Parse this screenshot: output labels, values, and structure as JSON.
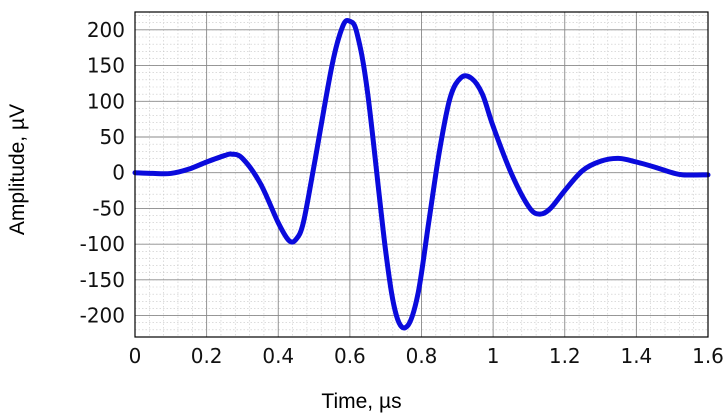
{
  "chart_data": {
    "type": "line",
    "title": "",
    "xlabel": "Time, µs",
    "ylabel": "Amplitude, µV",
    "xlim": [
      0,
      1.6
    ],
    "ylim": [
      -230,
      225
    ],
    "xticks": [
      0,
      0.2,
      0.4,
      0.6,
      0.8,
      1,
      1.2,
      1.4,
      1.6
    ],
    "xtick_labels": [
      "0",
      "0.2",
      "0.4",
      "0.6",
      "0.8",
      "1",
      "1.2",
      "1.4",
      "1.6"
    ],
    "yticks": [
      200,
      150,
      100,
      50,
      0,
      -50,
      -100,
      -150,
      -200
    ],
    "ytick_labels": [
      "200",
      "150",
      "100",
      "50",
      "0",
      "-50",
      "-100",
      "-150",
      "-200"
    ],
    "grid": "major and minor",
    "legend": "none",
    "series": [
      {
        "color": "#0a0adc",
        "x": [
          0,
          0.05,
          0.1,
          0.15,
          0.2,
          0.25,
          0.27,
          0.3,
          0.35,
          0.4,
          0.43,
          0.45,
          0.47,
          0.5,
          0.55,
          0.58,
          0.6,
          0.62,
          0.65,
          0.7,
          0.73,
          0.76,
          0.79,
          0.82,
          0.85,
          0.88,
          0.91,
          0.94,
          0.97,
          1.0,
          1.05,
          1.1,
          1.13,
          1.16,
          1.2,
          1.25,
          1.3,
          1.35,
          1.4,
          1.45,
          1.5,
          1.53,
          1.6
        ],
        "y": [
          0,
          -1,
          -1,
          5,
          15,
          24,
          26,
          20,
          -15,
          -70,
          -95,
          -93,
          -70,
          10,
          150,
          205,
          212,
          195,
          110,
          -110,
          -200,
          -215,
          -170,
          -70,
          30,
          105,
          133,
          132,
          110,
          65,
          0,
          -48,
          -58,
          -50,
          -25,
          3,
          16,
          20,
          15,
          8,
          0,
          -3,
          -3
        ]
      }
    ]
  }
}
